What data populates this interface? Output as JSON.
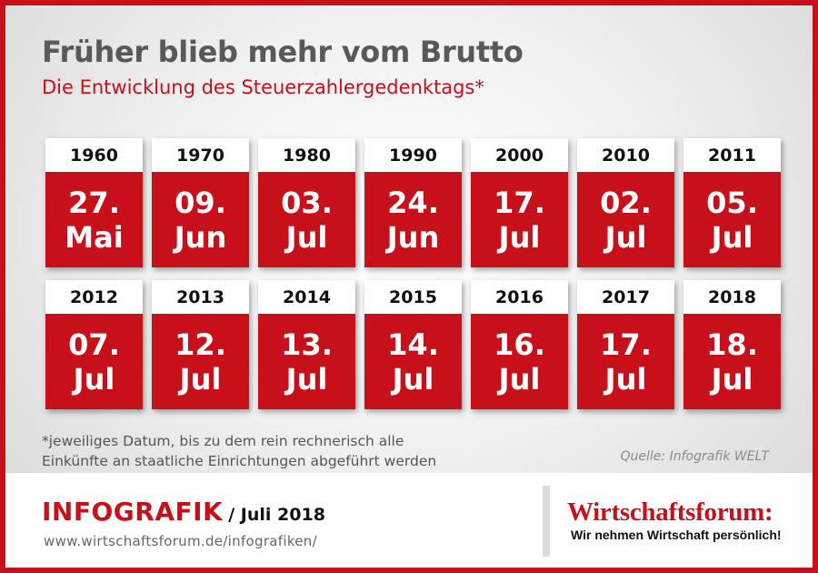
{
  "header": {
    "title": "Früher blieb mehr vom Brutto",
    "subtitle": "Die Entwicklung des Steuerzahlergedenktags*"
  },
  "rows": [
    [
      {
        "year": "1960",
        "day": "27.",
        "month": "Mai"
      },
      {
        "year": "1970",
        "day": "09.",
        "month": "Jun"
      },
      {
        "year": "1980",
        "day": "03.",
        "month": "Jul"
      },
      {
        "year": "1990",
        "day": "24.",
        "month": "Jun"
      },
      {
        "year": "2000",
        "day": "17.",
        "month": "Jul"
      },
      {
        "year": "2010",
        "day": "02.",
        "month": "Jul"
      },
      {
        "year": "2011",
        "day": "05.",
        "month": "Jul"
      }
    ],
    [
      {
        "year": "2012",
        "day": "07.",
        "month": "Jul"
      },
      {
        "year": "2013",
        "day": "12.",
        "month": "Jul"
      },
      {
        "year": "2014",
        "day": "13.",
        "month": "Jul"
      },
      {
        "year": "2015",
        "day": "14.",
        "month": "Jul"
      },
      {
        "year": "2016",
        "day": "16.",
        "month": "Jul"
      },
      {
        "year": "2017",
        "day": "17.",
        "month": "Jul"
      },
      {
        "year": "2018",
        "day": "18.",
        "month": "Jul"
      }
    ]
  ],
  "footnote": {
    "line1": "*jeweiliges Datum, bis zu dem rein rechnerisch alle",
    "line2": "Einkünfte an staatliche Einrichtungen abgeführt werden"
  },
  "source": "Quelle: Infografik WELT",
  "footer": {
    "brand": "INFOGRAFIK",
    "edition": "/ Juli 2018",
    "url": "www.wirtschaftsforum.de/infografiken/",
    "logo_name": "Wirtschaftsforum:",
    "logo_tagline": "Wir nehmen Wirtschaft persönlich!"
  },
  "colors": {
    "accent": "#c8101a",
    "title": "#58595b"
  }
}
